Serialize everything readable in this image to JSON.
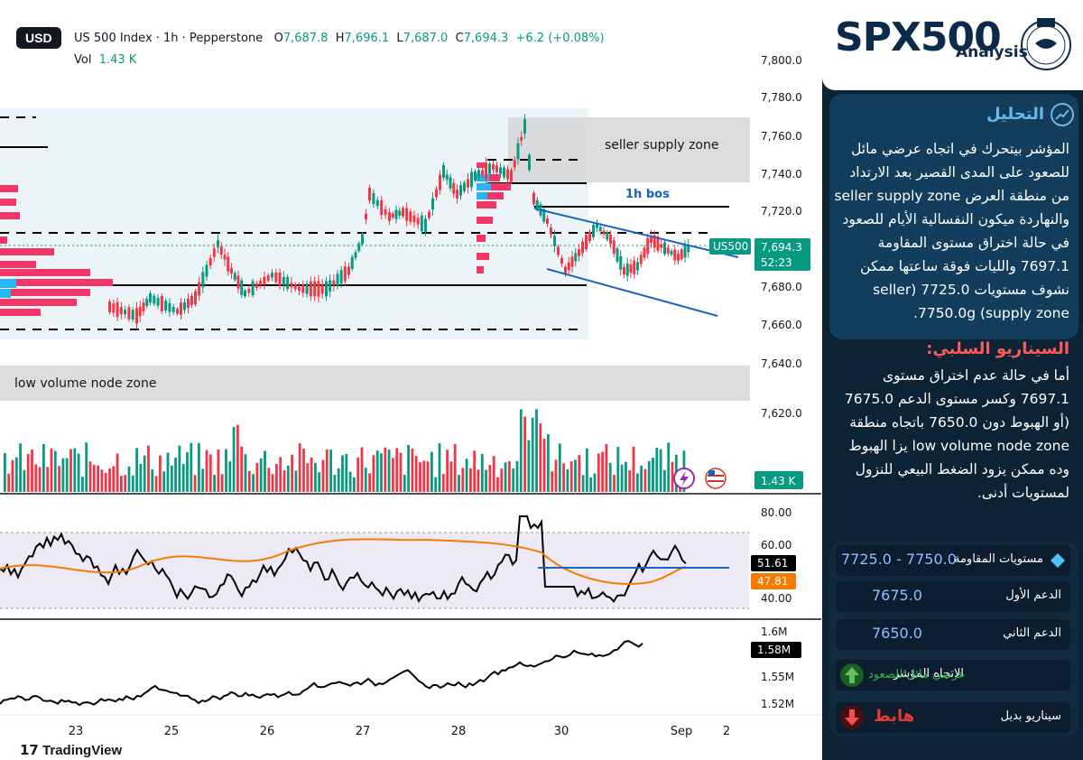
{
  "header": {
    "currency": "USD",
    "title": "US 500 Index · 1h · Pepperstone",
    "open_label": "O",
    "open": "7,687.8",
    "high_label": "H",
    "high": "7,696.1",
    "low_label": "L",
    "low": "7,687.0",
    "close_label": "C",
    "close": "7,694.3",
    "change": "+6.2 (+0.08%)",
    "vol_label": "Vol",
    "vol": "1.43 K"
  },
  "price_axis": [
    "7,800.0",
    "7,780.0",
    "7,760.0",
    "7,740.0",
    "7,720.0",
    "7,700.0",
    "7,680.0",
    "7,660.0",
    "7,640.0",
    "7,620.0",
    "7,620.0"
  ],
  "price_tag": {
    "symbol": "US500",
    "price": "7,694.3",
    "countdown": "52:23"
  },
  "volume_tag": "1.43 K",
  "annotations": {
    "supply_zone": "seller supply zone",
    "bos": "1h bos",
    "low_volume": "low volume node zone"
  },
  "rsi": {
    "axis": [
      "80.00",
      "60.00",
      "40.00"
    ],
    "value": "51.61",
    "ma": "47.81"
  },
  "obv": {
    "axis": [
      "1.6M",
      "1.55M",
      "1.52M"
    ],
    "value": "1.58M"
  },
  "time_axis": [
    "23",
    "25",
    "26",
    "27",
    "28",
    "30",
    "Sep",
    "2"
  ],
  "footer": "TradingView",
  "sidebar": {
    "brand": "SPX500",
    "brand_sub": "Analysis",
    "heading_analysis": "التحليل",
    "analysis_text": "المؤشر بيتحرك في اتجاه عرضي مائل للصعود على المدى القصير بعد الارتداد من منطقة العرض seller supply zone والنهاردة ميكون النفسالية الأيام للصعود في حالة اختراق مستوى المقاومة 7697.1 والليات فوقة ساعتها ممكن نشوف مستويات 7725.0 (seller supply zone) 7750.0g.",
    "heading_negative": "السيناريو السلبي:",
    "negative_text": "أما في حالة عدم اختراق مستوى 7697.1 وكسر مستوى الدعم 7675.0 (أو الهبوط دون 7650.0 باتجاه منطقة low volume node zone يزا الهبوط وده ممكن يزود الضغط البيعي للنزول لمستويات أدنى.",
    "rows": [
      {
        "label": "مستويات المقاومة",
        "value": "7725.0 - 7750.0"
      },
      {
        "label": "الدعم الأول",
        "value": "7675.0"
      },
      {
        "label": "الدعم الثاني",
        "value": "7650.0"
      },
      {
        "label": "الاتجاه المؤشر",
        "value": "عرضي مائل للصعود"
      },
      {
        "label": "سيناريو بديل",
        "value": "هابط"
      }
    ],
    "colors": {
      "up": "#2db84d",
      "down": "#e53935",
      "accent": "#8fbfff"
    }
  }
}
